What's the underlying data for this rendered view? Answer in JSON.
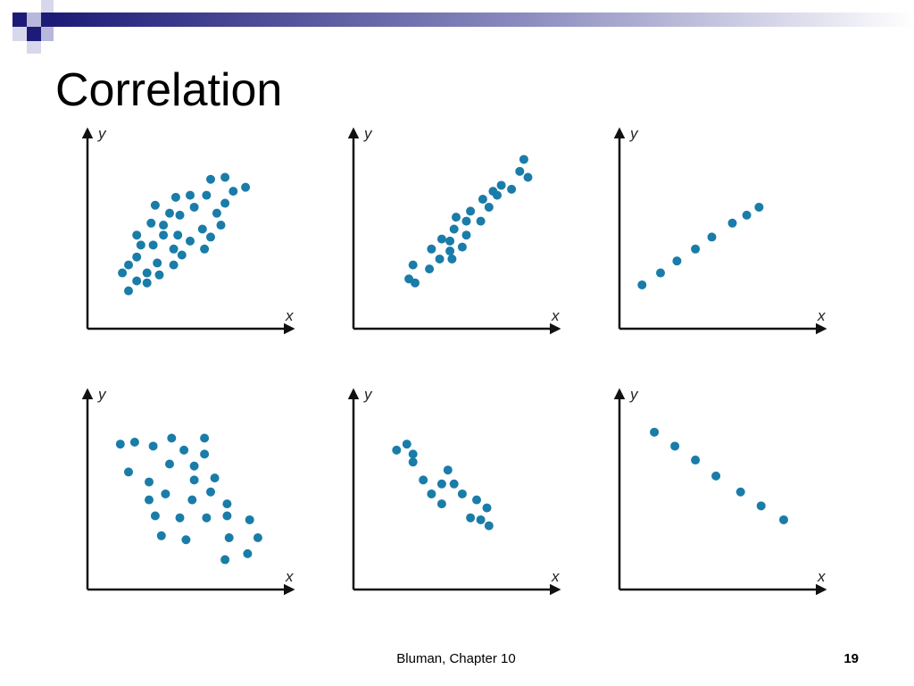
{
  "title": "Correlation",
  "footer": "Bluman, Chapter 10",
  "page_number": 19,
  "chart_data": [
    {
      "type": "scatter",
      "x_label": "x",
      "y_label": "y",
      "color": "#1a7ca8",
      "xlim": [
        0,
        10
      ],
      "ylim": [
        0,
        10
      ],
      "x": [
        1.7,
        2.0,
        2.0,
        2.4,
        2.4,
        2.6,
        2.4,
        2.9,
        2.9,
        3.2,
        3.1,
        3.4,
        3.5,
        3.3,
        3.7,
        3.7,
        4.0,
        4.2,
        4.2,
        4.5,
        4.4,
        4.6,
        4.3,
        5.0,
        5.0,
        5.2,
        5.6,
        5.7,
        5.8,
        6.0,
        6.0,
        6.3,
        6.5,
        6.7,
        6.7,
        7.1,
        7.7
      ],
      "y": [
        2.8,
        1.9,
        3.2,
        2.4,
        3.6,
        4.2,
        4.7,
        2.3,
        2.8,
        4.2,
        5.3,
        3.3,
        2.7,
        6.2,
        4.7,
        5.2,
        5.8,
        3.2,
        4.0,
        5.7,
        4.7,
        3.7,
        6.6,
        4.4,
        6.7,
        6.1,
        5.0,
        4.0,
        6.7,
        4.6,
        7.5,
        5.8,
        5.2,
        7.6,
        6.3,
        6.9,
        7.1
      ]
    },
    {
      "type": "scatter",
      "x_label": "x",
      "y_label": "y",
      "color": "#1a7ca8",
      "xlim": [
        0,
        10
      ],
      "ylim": [
        0,
        10
      ],
      "x": [
        2.7,
        2.9,
        3.0,
        3.7,
        3.8,
        4.2,
        4.3,
        4.7,
        4.7,
        4.8,
        4.9,
        5.0,
        5.3,
        5.5,
        5.5,
        5.7,
        6.2,
        6.3,
        6.6,
        6.8,
        7.0,
        7.2,
        7.7,
        8.1,
        8.3,
        8.5
      ],
      "y": [
        2.5,
        3.2,
        2.3,
        3.0,
        4.0,
        3.5,
        4.5,
        3.9,
        4.4,
        3.5,
        5.0,
        5.6,
        4.1,
        4.7,
        5.4,
        5.9,
        5.4,
        6.5,
        6.1,
        6.9,
        6.7,
        7.2,
        7.0,
        7.9,
        8.5,
        7.6
      ]
    },
    {
      "type": "scatter",
      "x_label": "x",
      "y_label": "y",
      "color": "#1a7ca8",
      "xlim": [
        0,
        10
      ],
      "ylim": [
        0,
        10
      ],
      "x": [
        1.1,
        2.0,
        2.8,
        3.7,
        4.5,
        5.5,
        6.2,
        6.8
      ],
      "y": [
        2.2,
        2.8,
        3.4,
        4.0,
        4.6,
        5.3,
        5.7,
        6.1
      ]
    },
    {
      "type": "scatter",
      "x_label": "x",
      "y_label": "y",
      "color": "#1a7ca8",
      "xlim": [
        0,
        10
      ],
      "ylim": [
        0,
        10
      ],
      "x": [
        1.6,
        2.3,
        3.2,
        4.1,
        5.7,
        2.0,
        4.7,
        5.7,
        4.0,
        5.2,
        3.0,
        5.2,
        6.2,
        3.8,
        3.0,
        5.1,
        6.0,
        6.8,
        3.3,
        4.5,
        5.8,
        6.8,
        7.9,
        3.6,
        4.8,
        6.9,
        8.3,
        6.7,
        7.8
      ],
      "y": [
        7.3,
        7.4,
        7.2,
        7.6,
        7.6,
        5.9,
        7.0,
        6.8,
        6.3,
        6.2,
        5.4,
        5.5,
        5.6,
        4.8,
        4.5,
        4.5,
        4.9,
        4.3,
        3.7,
        3.6,
        3.6,
        3.7,
        3.5,
        2.7,
        2.5,
        2.6,
        2.6,
        1.5,
        1.8
      ]
    },
    {
      "type": "scatter",
      "x_label": "x",
      "y_label": "y",
      "color": "#1a7ca8",
      "xlim": [
        0,
        10
      ],
      "ylim": [
        0,
        10
      ],
      "x": [
        2.1,
        2.6,
        2.9,
        2.9,
        3.4,
        4.6,
        3.8,
        4.3,
        4.9,
        4.3,
        5.3,
        6.0,
        6.5,
        5.7,
        6.2,
        6.6
      ],
      "y": [
        7.0,
        7.3,
        6.8,
        6.4,
        5.5,
        6.0,
        4.8,
        5.3,
        5.3,
        4.3,
        4.8,
        4.5,
        4.1,
        3.6,
        3.5,
        3.2
      ]
    },
    {
      "type": "scatter",
      "x_label": "x",
      "y_label": "y",
      "color": "#1a7ca8",
      "xlim": [
        0,
        10
      ],
      "ylim": [
        0,
        10
      ],
      "x": [
        1.7,
        2.7,
        3.7,
        4.7,
        5.9,
        6.9,
        8.0
      ],
      "y": [
        7.9,
        7.2,
        6.5,
        5.7,
        4.9,
        4.2,
        3.5
      ]
    }
  ]
}
